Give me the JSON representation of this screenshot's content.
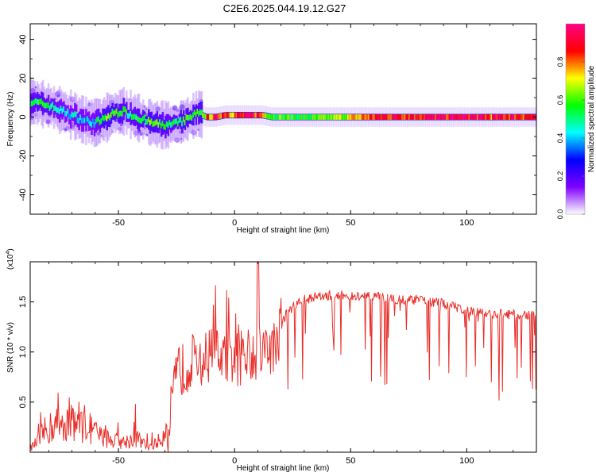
{
  "figure": {
    "title": "C2E6.2025.044.19.12.G27"
  },
  "chart_data": [
    {
      "type": "heatmap",
      "title": "C2E6.2025.044.19.12.G27",
      "xlabel": "Height of straight line (km)",
      "ylabel": "Frequency (Hz)",
      "xlim": [
        -88,
        130
      ],
      "ylim": [
        -50,
        48
      ],
      "xticks": [
        -50,
        0,
        50,
        100
      ],
      "xtick_labels": [
        "-50",
        "0",
        "50",
        "100"
      ],
      "yticks": [
        40,
        20,
        0,
        -20,
        -40
      ],
      "ytick_labels": [
        "40",
        "20",
        "0",
        "-20",
        "-40"
      ],
      "colorbar": {
        "label": "Normalized spectral amplitude",
        "range": [
          0,
          1
        ],
        "ticks": [
          0.0,
          0.2,
          0.4,
          0.6,
          0.8
        ],
        "tick_labels": [
          "0.0",
          "0.2",
          "0.4",
          "0.6",
          "0.8"
        ],
        "colors": [
          "#ffffff",
          "#7f00ff",
          "#0000ff",
          "#00ffff",
          "#00ff00",
          "#ffff00",
          "#ff0000",
          "#ff0088"
        ]
      },
      "ridge": {
        "x": [
          -88,
          -84,
          -80,
          -76,
          -72,
          -68,
          -64,
          -60,
          -56,
          -52,
          -48,
          -44,
          -40,
          -36,
          -32,
          -28,
          -24,
          -20,
          -16,
          -14,
          -12,
          -8,
          -4,
          0,
          4,
          8,
          12,
          16,
          20,
          30,
          40,
          50,
          60,
          70,
          80,
          90,
          100,
          110,
          120,
          130
        ],
        "freq": [
          8,
          7,
          6,
          4,
          2,
          0,
          -2,
          -3,
          -1,
          2,
          3,
          1,
          -1,
          -3,
          -4,
          -4,
          -3,
          -1,
          2,
          1,
          0,
          0,
          1,
          1,
          1,
          1,
          1,
          0,
          0,
          0,
          0,
          0,
          0,
          0,
          0,
          0,
          0,
          0,
          0,
          0
        ],
        "amplitude": [
          0.5,
          0.55,
          0.5,
          0.45,
          0.4,
          0.45,
          0.4,
          0.45,
          0.6,
          0.6,
          0.55,
          0.5,
          0.55,
          0.6,
          0.55,
          0.5,
          0.55,
          0.6,
          0.55,
          0.6,
          0.75,
          0.85,
          0.9,
          0.8,
          0.85,
          0.9,
          0.8,
          0.6,
          0.6,
          0.55,
          0.6,
          0.7,
          0.85,
          0.9,
          0.9,
          0.9,
          0.95,
          0.85,
          0.9,
          0.85
        ]
      }
    },
    {
      "type": "line",
      "xlabel": "Height of straight line (km)",
      "ylabel": "SNR (10 * v/v)",
      "y_multiplier_label": "(x10",
      "y_multiplier_exponent": "4",
      "xlim": [
        -88,
        130
      ],
      "ylim": [
        0,
        1.9
      ],
      "xticks": [
        -50,
        0,
        50,
        100
      ],
      "xtick_labels": [
        "-50",
        "0",
        "50",
        "100"
      ],
      "yticks": [
        0.5,
        1.0,
        1.5
      ],
      "ytick_labels": [
        "0.5",
        "1.0",
        "1.5"
      ],
      "color": "#e8302a",
      "series": [
        {
          "x": [
            -88,
            -85,
            -82,
            -78,
            -75,
            -72,
            -70,
            -68,
            -65,
            -62,
            -60,
            -58,
            -55,
            -52,
            -50,
            -48,
            -45,
            -42,
            -40,
            -38,
            -36,
            -34,
            -32,
            -30,
            -28,
            -27,
            -26,
            -25,
            -24,
            -22,
            -20,
            -18,
            -16,
            -14,
            -12,
            -10,
            -8,
            -6,
            -4,
            -2,
            0,
            2,
            4,
            6,
            8,
            9,
            10,
            12,
            14,
            16,
            18,
            20,
            22,
            25,
            28,
            30,
            33,
            36,
            40,
            45,
            50,
            55,
            60,
            65,
            70,
            75,
            80,
            85,
            90,
            95,
            100,
            105,
            110,
            115,
            120,
            125,
            130
          ],
          "y": [
            0.04,
            0.1,
            0.2,
            0.26,
            0.3,
            0.32,
            0.34,
            0.32,
            0.3,
            0.24,
            0.2,
            0.16,
            0.14,
            0.12,
            0.11,
            0.1,
            0.12,
            0.14,
            0.1,
            0.06,
            0.07,
            0.09,
            0.12,
            0.2,
            0.3,
            0.45,
            0.6,
            0.72,
            0.85,
            0.82,
            0.88,
            0.92,
            0.78,
            0.9,
            0.95,
            1.0,
            0.98,
            1.0,
            0.95,
            0.92,
            0.95,
            0.92,
            0.98,
            1.0,
            1.0,
            1.05,
            1.0,
            1.02,
            1.05,
            1.02,
            1.1,
            1.25,
            1.38,
            1.45,
            1.5,
            1.52,
            1.54,
            1.55,
            1.56,
            1.57,
            1.55,
            1.55,
            1.55,
            1.54,
            1.53,
            1.52,
            1.52,
            1.5,
            1.48,
            1.45,
            1.42,
            1.4,
            1.38,
            1.38,
            1.37,
            1.36,
            1.38
          ]
        }
      ]
    }
  ]
}
